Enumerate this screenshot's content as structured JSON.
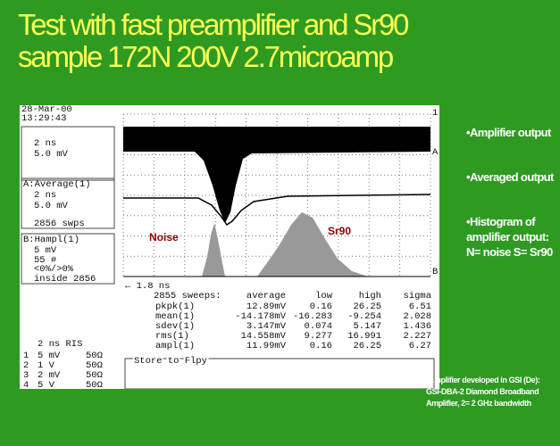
{
  "title": [
    "Test with fast preamplifier and Sr90",
    "sample 172N 200V 2.7microamp"
  ],
  "scope": {
    "date": "28-Mar-00",
    "time": "13:29:43",
    "channel1": [
      "2 ns",
      "5.0 mV"
    ],
    "channelA": [
      "A:Average(1)",
      "2 ns",
      "5.0 mV",
      "2856 swps"
    ],
    "channelB": [
      "B:Hampl(1)",
      "5 mV",
      "55 #",
      "<0%/>0%",
      "inside 2856"
    ],
    "markers": [
      "1",
      "A",
      "B"
    ],
    "timebase": "← 1.8 ns",
    "labels": {
      "noise": "Noise",
      "sr90": "Sr90"
    },
    "table": {
      "header": [
        "2855 sweeps:",
        "average",
        "low",
        "high",
        "sigma"
      ],
      "rows": [
        [
          "pkpk(1)",
          "12.89mV",
          "0.16",
          "26.25",
          "6.51"
        ],
        [
          "mean(1)",
          "-14.178mV",
          "-16.283",
          "-9.254",
          "2.028"
        ],
        [
          "sdev(1)",
          "3.147mV",
          "0.074",
          "5.147",
          "1.436"
        ],
        [
          "rms(1)",
          "14.558mV",
          "9.277",
          "16.991",
          "2.227"
        ],
        [
          "ampl(1)",
          "11.99mV",
          "0.16",
          "26.25",
          "6.27"
        ]
      ]
    },
    "ris": "2 ns RIS",
    "channels": [
      [
        "1",
        "5 mV",
        "50Ω"
      ],
      [
        "2",
        "1 V",
        "50Ω"
      ],
      [
        "3",
        "2 mV",
        "50Ω"
      ],
      [
        "4",
        "5 V",
        "50Ω"
      ]
    ],
    "store": "Store to Flpy"
  },
  "bullets": [
    "•Amplifier output",
    "•Averaged output",
    "•Histogram of amplifier output: N= noise S= Sr90"
  ],
  "note": "•Amplifier developed in GSI (De): GSI-DBA-2 Diamond Broadband Amplifier, 2= 2 GHz bandwidth"
}
